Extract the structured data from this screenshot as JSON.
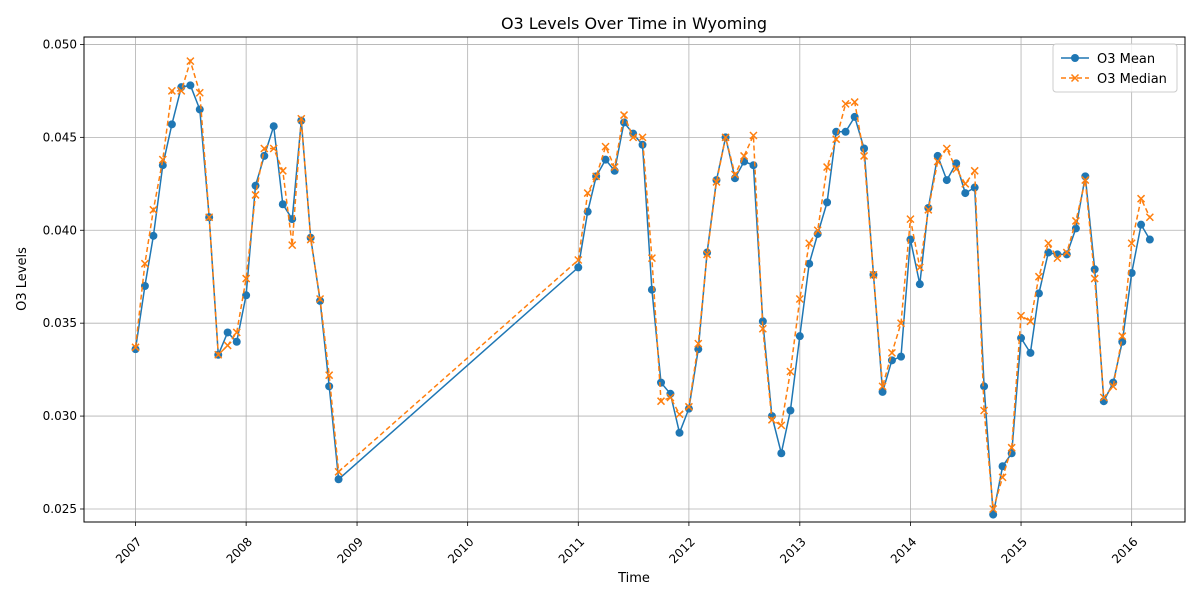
{
  "chart_data": {
    "type": "line",
    "title": "O3 Levels Over Time in Wyoming",
    "xlabel": "Time",
    "ylabel": "O3 Levels",
    "xlim": [
      "2006-07-15",
      "2016-06-25"
    ],
    "ylim": [
      0.0243,
      0.0504
    ],
    "x_ticks": [
      "2007",
      "2008",
      "2009",
      "2010",
      "2011",
      "2012",
      "2013",
      "2014",
      "2015",
      "2016"
    ],
    "y_ticks": [
      "0.025",
      "0.030",
      "0.035",
      "0.040",
      "0.045",
      "0.050"
    ],
    "y_tick_values": [
      0.025,
      0.03,
      0.035,
      0.04,
      0.045,
      0.05
    ],
    "grid": true,
    "legend_position": "top-right",
    "x": [
      "2007-01",
      "2007-02",
      "2007-03",
      "2007-04",
      "2007-05",
      "2007-06",
      "2007-07",
      "2007-08",
      "2007-09",
      "2007-10",
      "2007-11",
      "2007-12",
      "2008-01",
      "2008-02",
      "2008-03",
      "2008-04",
      "2008-05",
      "2008-06",
      "2008-07",
      "2008-08",
      "2008-09",
      "2008-10",
      "2008-11",
      "2011-01",
      "2011-02",
      "2011-03",
      "2011-04",
      "2011-05",
      "2011-06",
      "2011-07",
      "2011-08",
      "2011-09",
      "2011-10",
      "2011-11",
      "2011-12",
      "2012-01",
      "2012-02",
      "2012-03",
      "2012-04",
      "2012-05",
      "2012-06",
      "2012-07",
      "2012-08",
      "2012-09",
      "2012-10",
      "2012-11",
      "2012-12",
      "2013-01",
      "2013-02",
      "2013-03",
      "2013-04",
      "2013-05",
      "2013-06",
      "2013-07",
      "2013-08",
      "2013-09",
      "2013-10",
      "2013-11",
      "2013-12",
      "2014-01",
      "2014-02",
      "2014-03",
      "2014-04",
      "2014-05",
      "2014-06",
      "2014-07",
      "2014-08",
      "2014-09",
      "2014-10",
      "2014-11",
      "2014-12",
      "2015-01",
      "2015-02",
      "2015-03",
      "2015-04",
      "2015-05",
      "2015-06",
      "2015-07",
      "2015-08",
      "2015-09",
      "2015-10",
      "2015-11",
      "2015-12",
      "2016-01",
      "2016-02",
      "2016-03"
    ],
    "series": [
      {
        "name": "O3 Mean",
        "color": "#1f77b4",
        "style": "solid",
        "marker": "circle",
        "values": [
          0.0336,
          0.037,
          0.0397,
          0.0435,
          0.0457,
          0.0477,
          0.0478,
          0.0465,
          0.0407,
          0.0333,
          0.0345,
          0.034,
          0.0365,
          0.0424,
          0.044,
          0.0456,
          0.0414,
          0.0406,
          0.0459,
          0.0396,
          0.0362,
          0.0316,
          0.0266,
          0.038,
          0.041,
          0.0429,
          0.0438,
          0.0432,
          0.0458,
          0.0452,
          0.0446,
          0.0368,
          0.0318,
          0.0312,
          0.0291,
          0.0304,
          0.0336,
          0.0388,
          0.0427,
          0.045,
          0.0428,
          0.0437,
          0.0435,
          0.0351,
          0.03,
          0.028,
          0.0303,
          0.0343,
          0.0382,
          0.0398,
          0.0415,
          0.0453,
          0.0453,
          0.0461,
          0.0444,
          0.0376,
          0.0313,
          0.033,
          0.0332,
          0.0395,
          0.0371,
          0.0412,
          0.044,
          0.0427,
          0.0436,
          0.042,
          0.0423,
          0.0316,
          0.0247,
          0.0273,
          0.028,
          0.0342,
          0.0334,
          0.0366,
          0.0388,
          0.0387,
          0.0387,
          0.0401,
          0.0429,
          0.0379,
          0.0308,
          0.0318,
          0.034,
          0.0377,
          0.0403,
          0.0395
        ]
      },
      {
        "name": "O3 Median",
        "color": "#ff7f0e",
        "style": "dashed",
        "marker": "x",
        "values": [
          0.0337,
          0.0382,
          0.0411,
          0.0438,
          0.0475,
          0.0475,
          0.0491,
          0.0474,
          0.0407,
          0.0333,
          0.0338,
          0.0345,
          0.0374,
          0.0419,
          0.0444,
          0.0444,
          0.0432,
          0.0392,
          0.046,
          0.0395,
          0.0363,
          0.0322,
          0.027,
          0.0384,
          0.042,
          0.0429,
          0.0445,
          0.0434,
          0.0462,
          0.045,
          0.045,
          0.0385,
          0.0308,
          0.031,
          0.0301,
          0.0305,
          0.0339,
          0.0387,
          0.0426,
          0.045,
          0.043,
          0.044,
          0.0451,
          0.0347,
          0.0298,
          0.0295,
          0.0324,
          0.0363,
          0.0393,
          0.04,
          0.0434,
          0.0449,
          0.0468,
          0.0469,
          0.044,
          0.0376,
          0.0316,
          0.0334,
          0.035,
          0.0406,
          0.038,
          0.0411,
          0.0437,
          0.0444,
          0.0433,
          0.0425,
          0.0432,
          0.0303,
          0.025,
          0.0267,
          0.0283,
          0.0354,
          0.0351,
          0.0375,
          0.0393,
          0.0385,
          0.0388,
          0.0405,
          0.0427,
          0.0374,
          0.031,
          0.0316,
          0.0343,
          0.0393,
          0.0417,
          0.0407
        ]
      }
    ]
  }
}
